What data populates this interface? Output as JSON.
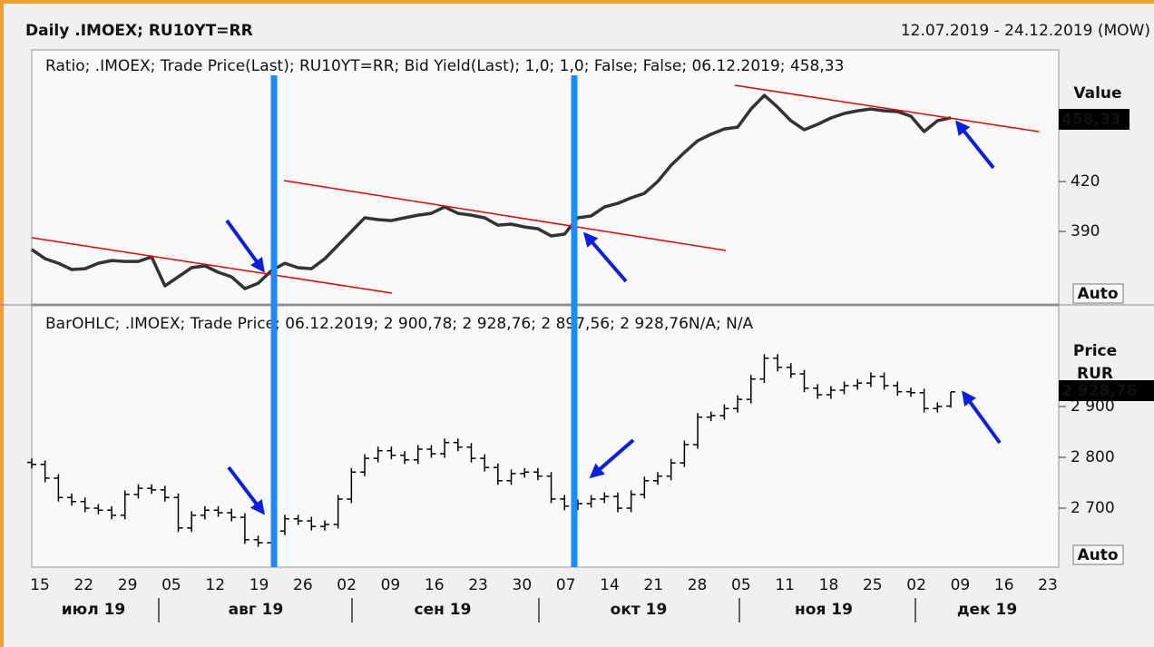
{
  "header": {
    "title": "Daily .IMOEX; RU10YT=RR",
    "range": "12.07.2019 - 24.12.2019 (MOW)"
  },
  "chart_data": [
    {
      "type": "line",
      "legend": "Ratio; .IMOEX; Trade Price(Last); RU10YT=RR; Bid Yield(Last);  1,0; 1,0; False; False;  06.12.2019; 458,33",
      "axis_title": "Value",
      "last_value_label": "458,33",
      "scale_mode": "Auto",
      "color": "#333333",
      "ylim": [
        346.4,
        499.1
      ],
      "yticks": [
        390,
        420
      ],
      "values": [
        379.1,
        373.6,
        370.9,
        367.1,
        367.6,
        370.9,
        372.5,
        372.0,
        372.0,
        374.7,
        357.3,
        362.7,
        368.2,
        369.3,
        365.5,
        362.7,
        355.6,
        358.9,
        366.5,
        370.9,
        368.2,
        367.6,
        373.6,
        381.8,
        390.0,
        398.2,
        397.1,
        396.5,
        398.2,
        399.8,
        400.9,
        404.7,
        400.9,
        399.8,
        398.2,
        393.8,
        394.4,
        392.7,
        391.6,
        387.3,
        388.4,
        398.2,
        399.3,
        404.7,
        406.9,
        410.2,
        412.9,
        420.0,
        429.8,
        437.5,
        444.5,
        448.4,
        451.6,
        452.7,
        463.6,
        471.8,
        464.7,
        456.5,
        451.1,
        454.4,
        458.2,
        460.9,
        462.5,
        463.6,
        462.5,
        462.0,
        459.3,
        450.0,
        456.5,
        458.33
      ]
    },
    {
      "type": "ohlc",
      "legend": "BarOHLC; .IMOEX; Trade Price;  06.12.2019; 2 900,78; 2 928,76; 2 897,56; 2 928,76N/A; N/A",
      "axis_title": "Price",
      "axis_unit": "RUR",
      "last_value_label": "2 928,76",
      "scale_mode": "Auto",
      "color": "#000000",
      "ylim": [
        2584,
        3098
      ],
      "yticks": [
        {
          "value": 2700,
          "label": "2 700"
        },
        {
          "value": 2800,
          "label": "2 800"
        },
        {
          "value": 2900,
          "label": "2 900"
        }
      ],
      "open": [
        2790,
        2786,
        2759,
        2721,
        2713,
        2700,
        2696,
        2686,
        2727,
        2739,
        2736,
        2721,
        2661,
        2686,
        2696,
        2691,
        2682,
        2638,
        2632,
        2655,
        2679,
        2675,
        2664,
        2668,
        2718,
        2771,
        2798,
        2813,
        2804,
        2795,
        2816,
        2807,
        2829,
        2820,
        2798,
        2780,
        2754,
        2768,
        2771,
        2763,
        2718,
        2704,
        2709,
        2718,
        2723,
        2700,
        2727,
        2754,
        2763,
        2789,
        2825,
        2879,
        2882,
        2896,
        2914,
        2954,
        2995,
        2977,
        2964,
        2936,
        2923,
        2932,
        2941,
        2946,
        2959,
        2941,
        2929,
        2927,
        2896,
        2900.78
      ],
      "high": [
        2798,
        2794,
        2767,
        2729,
        2721,
        2708,
        2704,
        2735,
        2747,
        2747,
        2744,
        2729,
        2694,
        2704,
        2704,
        2699,
        2690,
        2646,
        2663,
        2687,
        2687,
        2683,
        2676,
        2726,
        2779,
        2806,
        2821,
        2821,
        2812,
        2824,
        2824,
        2837,
        2837,
        2828,
        2806,
        2788,
        2776,
        2779,
        2779,
        2771,
        2726,
        2717,
        2726,
        2731,
        2731,
        2735,
        2762,
        2771,
        2797,
        2833,
        2887,
        2890,
        2904,
        2922,
        2962,
        3003,
        3003,
        2985,
        2972,
        2944,
        2940,
        2949,
        2954,
        2967,
        2967,
        2949,
        2937,
        2935,
        2908,
        2928.76
      ],
      "low": [
        2778,
        2751,
        2713,
        2705,
        2692,
        2688,
        2678,
        2678,
        2719,
        2728,
        2713,
        2653,
        2653,
        2678,
        2683,
        2674,
        2630,
        2624,
        2624,
        2647,
        2667,
        2656,
        2656,
        2660,
        2710,
        2763,
        2790,
        2796,
        2787,
        2787,
        2799,
        2799,
        2812,
        2790,
        2772,
        2746,
        2746,
        2760,
        2755,
        2710,
        2696,
        2696,
        2701,
        2710,
        2692,
        2692,
        2719,
        2746,
        2755,
        2781,
        2817,
        2871,
        2874,
        2888,
        2906,
        2946,
        2969,
        2956,
        2928,
        2915,
        2915,
        2924,
        2933,
        2938,
        2933,
        2921,
        2919,
        2888,
        2888,
        2897.56
      ],
      "close": [
        2786,
        2759,
        2721,
        2713,
        2700,
        2696,
        2686,
        2727,
        2739,
        2736,
        2721,
        2661,
        2686,
        2696,
        2691,
        2682,
        2638,
        2632,
        2655,
        2679,
        2675,
        2664,
        2668,
        2718,
        2771,
        2798,
        2813,
        2804,
        2795,
        2816,
        2807,
        2829,
        2820,
        2798,
        2780,
        2754,
        2768,
        2771,
        2763,
        2718,
        2704,
        2709,
        2718,
        2723,
        2700,
        2727,
        2754,
        2763,
        2789,
        2825,
        2879,
        2882,
        2896,
        2914,
        2954,
        2995,
        2977,
        2964,
        2936,
        2923,
        2932,
        2941,
        2946,
        2959,
        2941,
        2929,
        2927,
        2896,
        2900,
        2928.76
      ]
    }
  ],
  "x_axis": {
    "tick_labels": [
      "15",
      "22",
      "29",
      "05",
      "12",
      "19",
      "26",
      "02",
      "09",
      "16",
      "23",
      "30",
      "07",
      "14",
      "21",
      "28",
      "05",
      "11",
      "18",
      "25",
      "02",
      "09",
      "16",
      "23"
    ],
    "month_labels": [
      "июл 19",
      "авг 19",
      "сен 19",
      "окт 19",
      "ноя 19",
      "дек 19"
    ]
  }
}
